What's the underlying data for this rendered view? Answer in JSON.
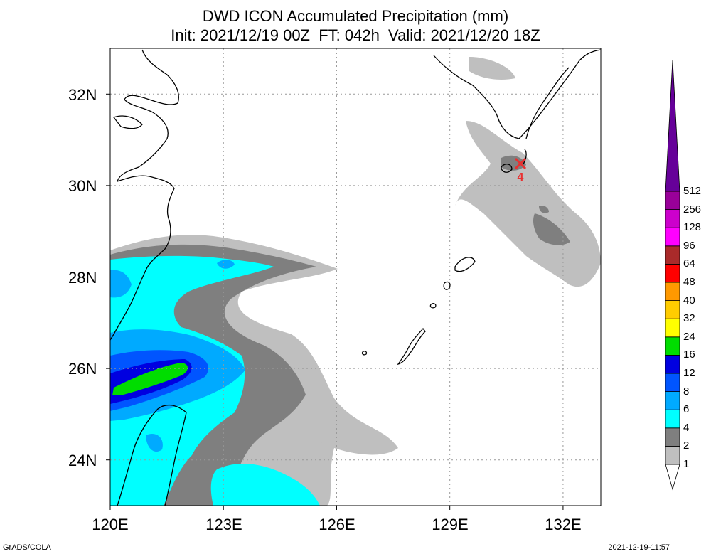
{
  "title": {
    "line1": "DWD ICON Accumulated Precipitation (mm)",
    "line2": "Init: 2021/12/19 00Z  FT: 042h  Valid: 2021/12/20 18Z"
  },
  "map": {
    "lon_range": [
      120,
      133
    ],
    "lat_range": [
      23,
      33
    ],
    "lat_ticks": [
      {
        "value": 32,
        "label": "32N"
      },
      {
        "value": 30,
        "label": "30N"
      },
      {
        "value": 28,
        "label": "28N"
      },
      {
        "value": 26,
        "label": "26N"
      },
      {
        "value": 24,
        "label": "24N"
      }
    ],
    "lon_ticks": [
      {
        "value": 120,
        "label": "120E"
      },
      {
        "value": 123,
        "label": "123E"
      },
      {
        "value": 126,
        "label": "126E"
      },
      {
        "value": 129,
        "label": "129E"
      },
      {
        "value": 132,
        "label": "132E"
      }
    ],
    "grid": true,
    "marker": {
      "type": "cross",
      "color": "#e83030",
      "lon": 130.9,
      "lat": 30.55,
      "number": "4"
    }
  },
  "colorbar": {
    "levels": [
      "1",
      "2",
      "4",
      "6",
      "8",
      "12",
      "16",
      "24",
      "32",
      "40",
      "48",
      "64",
      "96",
      "128",
      "256",
      "512"
    ],
    "colors": [
      "#ffffff",
      "#bfbfbf",
      "#7f7f7f",
      "#00ffff",
      "#00aaff",
      "#0055ff",
      "#0000e0",
      "#00dd00",
      "#ffff00",
      "#ffcc00",
      "#ff9900",
      "#ff0000",
      "#aa2a2a",
      "#ff00ff",
      "#cc00cc",
      "#990099",
      "#660099"
    ]
  },
  "footer": {
    "left": "GrADS/COLA",
    "right": "2021-12-19-11:57"
  }
}
